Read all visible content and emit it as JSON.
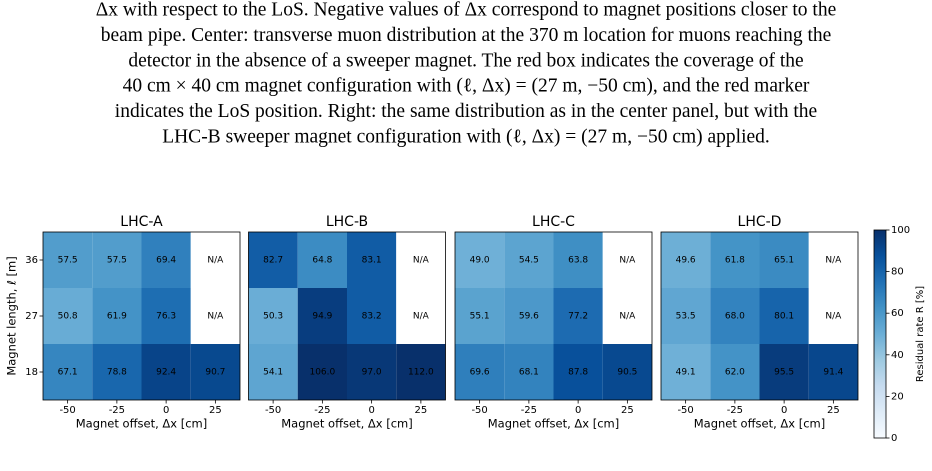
{
  "caption_lines": [
    "Δx with respect to the LoS. Negative values of Δx correspond to magnet positions closer to the",
    "beam pipe. Center: transverse muon distribution at the 370 m location for muons reaching the",
    "detector in the absence of a sweeper magnet. The red box indicates the coverage of the",
    "40 cm × 40 cm magnet configuration with (ℓ, Δx) = (27 m, −50 cm), and the red marker",
    "indicates the LoS position. Right: the same distribution as in the center panel, but with the",
    "LHC-B sweeper magnet configuration with (ℓ, Δx) = (27 m, −50 cm) applied."
  ],
  "figure": {
    "type": "heatmap",
    "x_label": "Magnet offset, Δx [cm]",
    "y_label": "Magnet length, ℓ [m]",
    "x_categories": [
      "-50",
      "-25",
      "0",
      "25"
    ],
    "y_categories": [
      "36",
      "27",
      "18"
    ],
    "colormap": "Blues",
    "colorbar": {
      "label": "Residual rate R [%]",
      "lim": [
        0,
        100
      ],
      "ticks": [
        0,
        20,
        40,
        60,
        80,
        100
      ]
    },
    "panels": [
      {
        "title": "LHC-A",
        "values": [
          [
            57.5,
            57.5,
            69.4,
            null
          ],
          [
            50.8,
            61.9,
            76.3,
            null
          ],
          [
            67.1,
            78.8,
            92.4,
            90.7
          ]
        ],
        "value_labels": [
          [
            "57.5",
            "57.5",
            "69.4",
            "N/A"
          ],
          [
            "50.8",
            "61.9",
            "76.3",
            "N/A"
          ],
          [
            "67.1",
            "78.8",
            "92.4",
            "90.7"
          ]
        ]
      },
      {
        "title": "LHC-B",
        "values": [
          [
            82.7,
            64.8,
            83.1,
            null
          ],
          [
            50.3,
            94.9,
            83.2,
            null
          ],
          [
            54.1,
            106.0,
            97.0,
            112.0
          ]
        ],
        "value_labels": [
          [
            "82.7",
            "64.8",
            "83.1",
            "N/A"
          ],
          [
            "50.3",
            "94.9",
            "83.2",
            "N/A"
          ],
          [
            "54.1",
            "106.0",
            "97.0",
            "112.0"
          ]
        ]
      },
      {
        "title": "LHC-C",
        "values": [
          [
            49.0,
            54.5,
            63.8,
            null
          ],
          [
            55.1,
            59.6,
            77.2,
            null
          ],
          [
            69.6,
            68.1,
            87.8,
            90.5
          ]
        ],
        "value_labels": [
          [
            "49.0",
            "54.5",
            "63.8",
            "N/A"
          ],
          [
            "55.1",
            "59.6",
            "77.2",
            "N/A"
          ],
          [
            "69.6",
            "68.1",
            "87.8",
            "90.5"
          ]
        ]
      },
      {
        "title": "LHC-D",
        "values": [
          [
            49.6,
            61.8,
            65.1,
            null
          ],
          [
            53.5,
            68.0,
            80.1,
            null
          ],
          [
            49.1,
            62.0,
            95.5,
            91.4
          ]
        ],
        "value_labels": [
          [
            "49.6",
            "61.8",
            "65.1",
            "N/A"
          ],
          [
            "53.5",
            "68.0",
            "80.1",
            "N/A"
          ],
          [
            "49.1",
            "62.0",
            "95.5",
            "91.4"
          ]
        ]
      }
    ]
  }
}
